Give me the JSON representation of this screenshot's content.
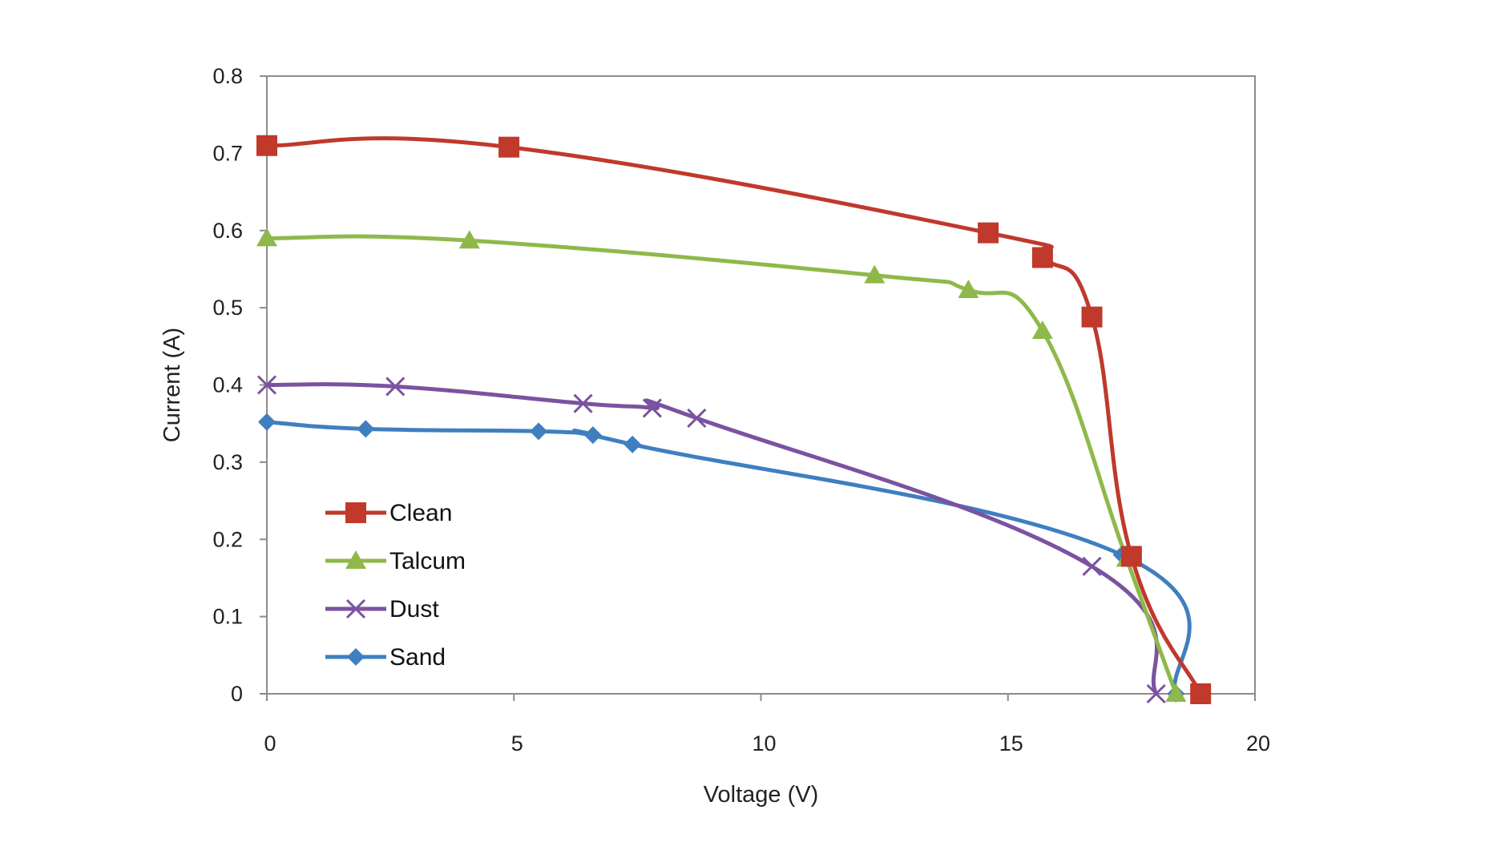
{
  "chart_data": {
    "type": "line",
    "xlabel": "Voltage (V)",
    "ylabel": "Current (A)",
    "xlim": [
      0,
      20
    ],
    "ylim": [
      0,
      0.8
    ],
    "xticks": [
      0,
      5,
      10,
      15,
      20
    ],
    "yticks": [
      0,
      0.1,
      0.2,
      0.3,
      0.4,
      0.5,
      0.6,
      0.7,
      0.8
    ],
    "xtick_labels": [
      "0",
      "5",
      "10",
      "15",
      "20"
    ],
    "ytick_labels": [
      "0",
      "0.1",
      "0.2",
      "0.3",
      "0.4",
      "0.5",
      "0.6",
      "0.7",
      "0.8"
    ],
    "grid": false,
    "legend_position": "bottom-left",
    "series": [
      {
        "name": "Clean",
        "color": "#c0392b",
        "marker": "square",
        "points": [
          [
            0,
            0.71
          ],
          [
            4.9,
            0.708
          ],
          [
            14.6,
            0.597
          ],
          [
            15.7,
            0.565
          ],
          [
            16.7,
            0.488
          ],
          [
            17.5,
            0.178
          ],
          [
            18.9,
            0.0
          ]
        ]
      },
      {
        "name": "Talcum",
        "color": "#8fb84a",
        "marker": "triangle",
        "points": [
          [
            0,
            0.59
          ],
          [
            4.1,
            0.587
          ],
          [
            12.3,
            0.542
          ],
          [
            14.2,
            0.523
          ],
          [
            15.7,
            0.47
          ],
          [
            17.4,
            0.175
          ],
          [
            18.4,
            0.0
          ]
        ]
      },
      {
        "name": "Dust",
        "color": "#7b52a0",
        "marker": "x",
        "points": [
          [
            0,
            0.4
          ],
          [
            2.6,
            0.398
          ],
          [
            6.4,
            0.376
          ],
          [
            7.8,
            0.37
          ],
          [
            8.7,
            0.357
          ],
          [
            16.7,
            0.165
          ],
          [
            18.0,
            0.0
          ]
        ]
      },
      {
        "name": "Sand",
        "color": "#3f7fc0",
        "marker": "diamond",
        "points": [
          [
            0,
            0.352
          ],
          [
            2.0,
            0.343
          ],
          [
            5.5,
            0.34
          ],
          [
            6.6,
            0.335
          ],
          [
            7.4,
            0.323
          ],
          [
            17.3,
            0.18
          ],
          [
            18.4,
            0.0
          ]
        ]
      }
    ]
  }
}
